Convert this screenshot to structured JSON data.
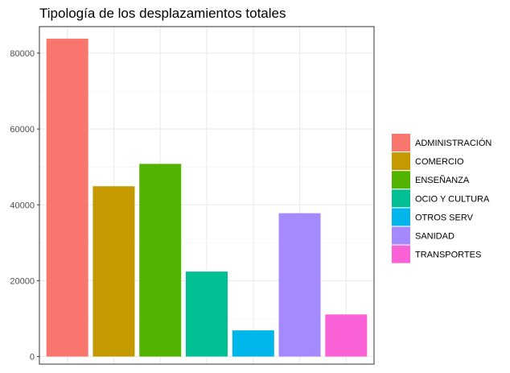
{
  "chart_data": {
    "type": "bar",
    "title": "Tipología de los desplazamientos totales",
    "xlabel": "",
    "ylabel": "",
    "categories": [
      "ADMINISTRACIÓN",
      "COMERCIO",
      "ENSEÑANZA",
      "OCIO Y CULTURA",
      "OTROS SERV",
      "SANIDAD",
      "TRANSPORTES"
    ],
    "values": [
      83800,
      44900,
      50800,
      22400,
      6900,
      37800,
      11100
    ],
    "colors": [
      "#F8766D",
      "#C49A00",
      "#53B400",
      "#00C094",
      "#00B6EB",
      "#A58AFF",
      "#FB61D7"
    ],
    "ylim": [
      -2000,
      87000
    ],
    "yticks": [
      0,
      20000,
      40000,
      60000,
      80000
    ],
    "ytick_labels": [
      "0",
      "20000",
      "40000",
      "60000",
      "80000"
    ],
    "grid": true,
    "legend_position": "right"
  }
}
